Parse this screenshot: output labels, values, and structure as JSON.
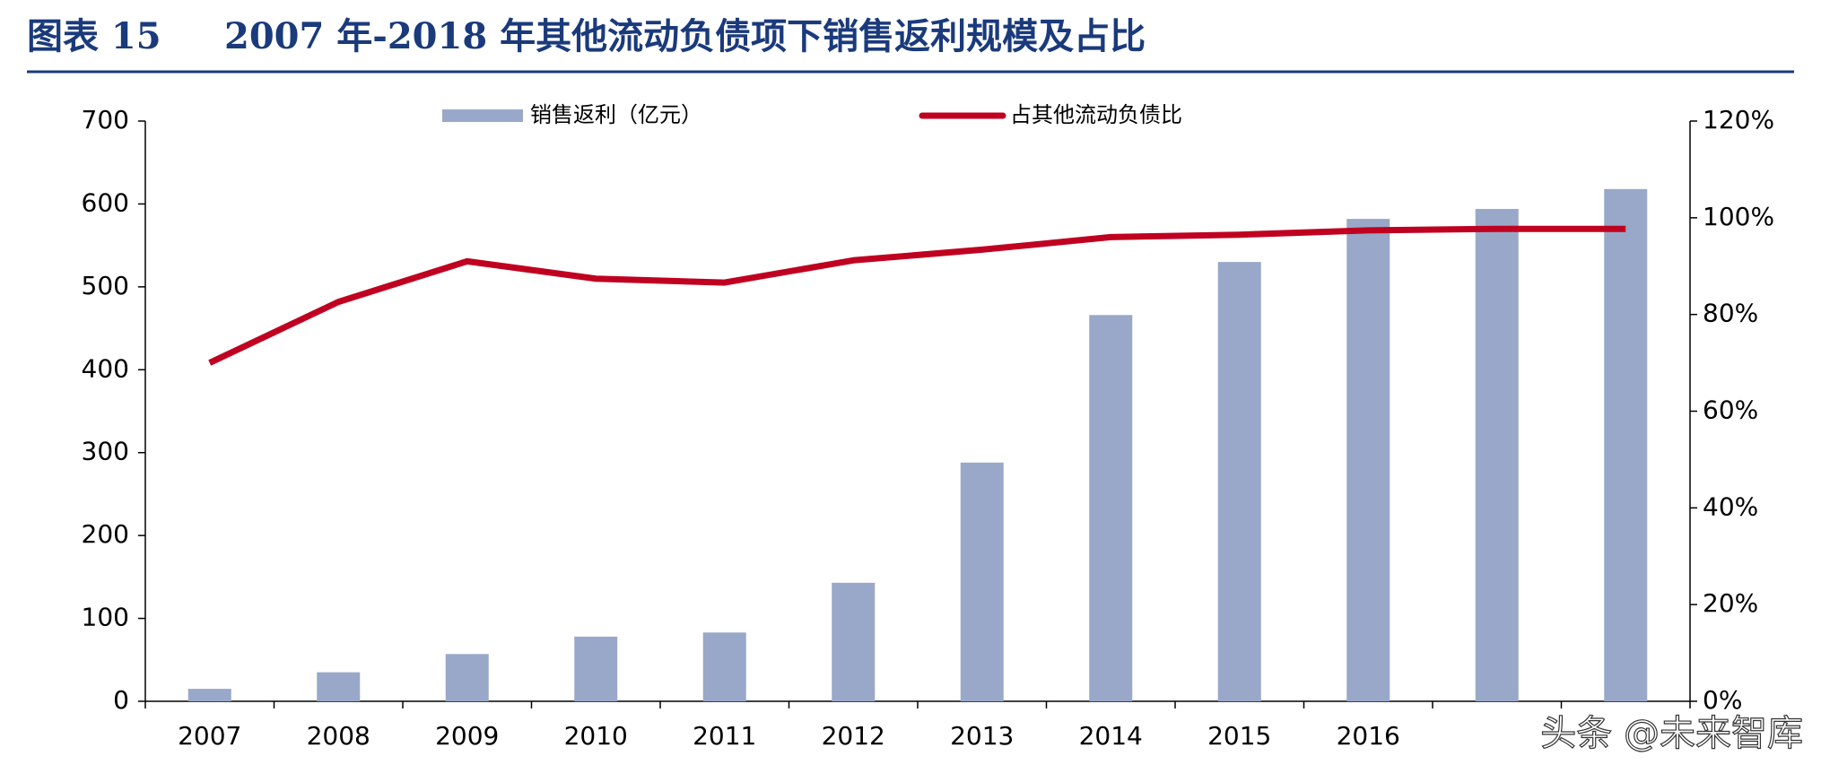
{
  "chart_data": {
    "type": "bar-line",
    "figure_label": "图表 15",
    "title": "2007 年-2018 年其他流动负债项下销售返利规模及占比",
    "categories": [
      "2007",
      "2008",
      "2009",
      "2010",
      "2011",
      "2012",
      "2013",
      "2014",
      "2015",
      "2016",
      null,
      null
    ],
    "series": [
      {
        "name": "销售返利（亿元）",
        "type": "bar",
        "color": "#99a8c8",
        "values": [
          15,
          35,
          57,
          78,
          83,
          143,
          288,
          466,
          530,
          582,
          594,
          618
        ]
      },
      {
        "name": "占其他流动负债比",
        "type": "line",
        "axis": "y2",
        "color": "#c00020",
        "values": [
          70,
          82.6,
          91,
          87.4,
          86.6,
          91.2,
          93.4,
          96,
          96.5,
          97.4,
          97.7,
          97.7
        ]
      }
    ],
    "ylim": [
      0,
      700
    ],
    "yticks": [
      0,
      100,
      200,
      300,
      400,
      500,
      600,
      700
    ],
    "y2lim": [
      0,
      120
    ],
    "y2ticks": [
      {
        "value": 0,
        "label": "0%"
      },
      {
        "value": 20,
        "label": "20%"
      },
      {
        "value": 40,
        "label": "40%"
      },
      {
        "value": 60,
        "label": "60%"
      },
      {
        "value": 80,
        "label": "80%"
      },
      {
        "value": 100,
        "label": "100%"
      },
      {
        "value": 120,
        "label": "120%"
      }
    ],
    "grid": false,
    "watermark": "头条 @未来智库"
  }
}
